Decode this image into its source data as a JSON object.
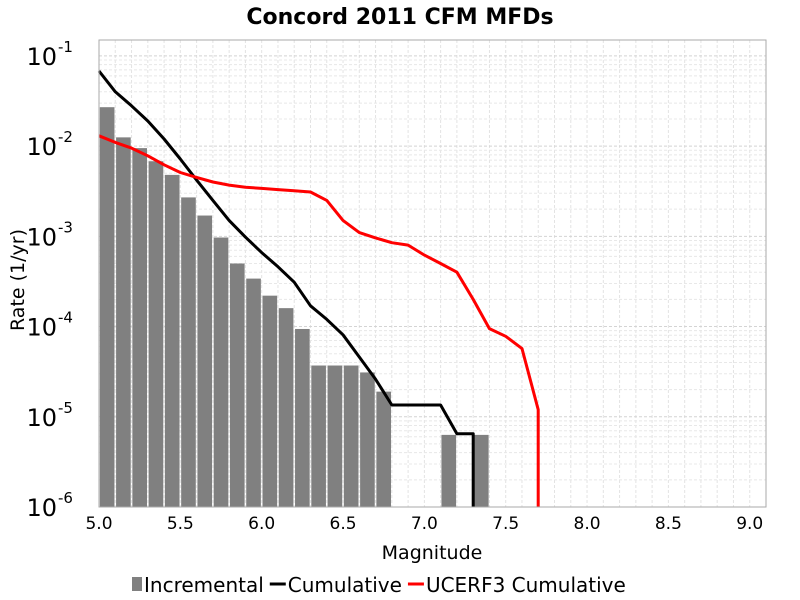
{
  "chart_data": {
    "type": "bar",
    "title": "Concord 2011 CFM MFDs",
    "xlabel": "Magnitude",
    "ylabel": "Rate (1/yr)",
    "xlim": [
      5.0,
      9.1
    ],
    "ylim": [
      1e-06,
      0.15
    ],
    "yscale": "log",
    "grid": true,
    "legend_position": "bottom",
    "xticks": [
      "5.0",
      "5.5",
      "6.0",
      "6.5",
      "7.0",
      "7.5",
      "8.0",
      "8.5",
      "9.0"
    ],
    "yticks": [
      {
        "base": "10",
        "exp": "-1",
        "value": 0.1
      },
      {
        "base": "10",
        "exp": "-2",
        "value": 0.01
      },
      {
        "base": "10",
        "exp": "-3",
        "value": 0.001
      },
      {
        "base": "10",
        "exp": "-4",
        "value": 0.0001
      },
      {
        "base": "10",
        "exp": "-5",
        "value": 1e-05
      },
      {
        "base": "10",
        "exp": "-6",
        "value": 1e-06
      }
    ],
    "series": [
      {
        "name": "Incremental",
        "kind": "bar",
        "color": "#808080",
        "bar_width": 0.09,
        "x": [
          5.05,
          5.15,
          5.25,
          5.35,
          5.45,
          5.55,
          5.65,
          5.75,
          5.85,
          5.95,
          6.05,
          6.15,
          6.25,
          6.35,
          6.45,
          6.55,
          6.65,
          6.75,
          7.15,
          7.35
        ],
        "y": [
          0.027,
          0.0125,
          0.0095,
          0.0068,
          0.0048,
          0.0027,
          0.0017,
          0.00097,
          0.0005,
          0.00034,
          0.00022,
          0.00016,
          9.4e-05,
          3.7e-05,
          3.7e-05,
          3.7e-05,
          3.1e-05,
          1.9e-05,
          6.3e-06,
          6.3e-06
        ]
      },
      {
        "name": "Cumulative",
        "kind": "line",
        "color": "#000000",
        "x": [
          5.0,
          5.1,
          5.2,
          5.3,
          5.4,
          5.5,
          5.6,
          5.7,
          5.8,
          5.9,
          6.0,
          6.1,
          6.2,
          6.3,
          6.4,
          6.5,
          6.6,
          6.7,
          6.8,
          6.9,
          7.0,
          7.1,
          7.2,
          7.3,
          7.3
        ],
        "y": [
          0.068,
          0.04,
          0.028,
          0.019,
          0.012,
          0.0072,
          0.0042,
          0.0025,
          0.0015,
          0.00098,
          0.00066,
          0.00046,
          0.00031,
          0.00017,
          0.00012,
          8.1e-05,
          4.6e-05,
          2.6e-05,
          1.35e-05,
          1.35e-05,
          1.35e-05,
          1.35e-05,
          6.5e-06,
          6.5e-06,
          1e-06
        ]
      },
      {
        "name": "UCERF3 Cumulative",
        "kind": "line",
        "color": "#ff0000",
        "x": [
          5.0,
          5.1,
          5.2,
          5.3,
          5.4,
          5.5,
          5.6,
          5.7,
          5.8,
          5.9,
          6.0,
          6.1,
          6.2,
          6.3,
          6.4,
          6.5,
          6.6,
          6.7,
          6.8,
          6.9,
          7.0,
          7.1,
          7.2,
          7.3,
          7.4,
          7.5,
          7.6,
          7.7,
          7.7
        ],
        "y": [
          0.013,
          0.011,
          0.0095,
          0.0078,
          0.0062,
          0.0051,
          0.0045,
          0.004,
          0.0037,
          0.0035,
          0.0034,
          0.0033,
          0.0032,
          0.0031,
          0.0025,
          0.0015,
          0.0011,
          0.00096,
          0.00085,
          0.0008,
          0.00062,
          0.0005,
          0.0004,
          0.0002,
          9.5e-05,
          7.8e-05,
          5.7e-05,
          1.2e-05,
          1e-06
        ]
      }
    ]
  }
}
